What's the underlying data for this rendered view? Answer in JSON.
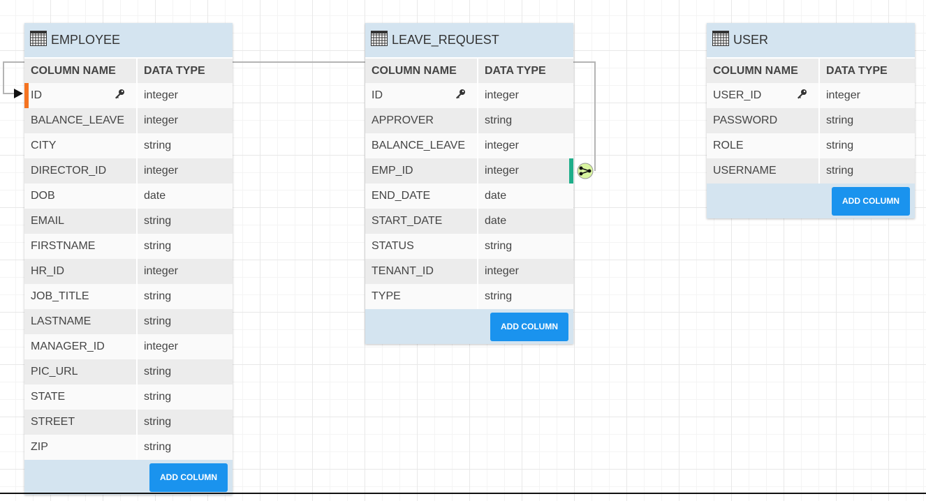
{
  "colors": {
    "header_bg": "#d4e4f0",
    "button": "#1a93ee",
    "pk_marker": "#f47321",
    "fk_marker": "#1fae8a",
    "relation_icon": "#d9f5a0"
  },
  "tables": [
    {
      "name": "EMPLOYEE",
      "col_header": "COLUMN NAME",
      "type_header": "DATA TYPE",
      "add_label": "ADD COLUMN",
      "columns": [
        {
          "name": "ID",
          "type": "integer",
          "key": true,
          "marker": "pk"
        },
        {
          "name": "BALANCE_LEAVE",
          "type": "integer"
        },
        {
          "name": "CITY",
          "type": "string"
        },
        {
          "name": "DIRECTOR_ID",
          "type": "integer"
        },
        {
          "name": "DOB",
          "type": "date"
        },
        {
          "name": "EMAIL",
          "type": "string"
        },
        {
          "name": "FIRSTNAME",
          "type": "string"
        },
        {
          "name": "HR_ID",
          "type": "integer"
        },
        {
          "name": "JOB_TITLE",
          "type": "string"
        },
        {
          "name": "LASTNAME",
          "type": "string"
        },
        {
          "name": "MANAGER_ID",
          "type": "integer"
        },
        {
          "name": "PIC_URL",
          "type": "string"
        },
        {
          "name": "STATE",
          "type": "string"
        },
        {
          "name": "STREET",
          "type": "string"
        },
        {
          "name": "ZIP",
          "type": "string"
        }
      ]
    },
    {
      "name": "LEAVE_REQUEST",
      "col_header": "COLUMN NAME",
      "type_header": "DATA TYPE",
      "add_label": "ADD COLUMN",
      "columns": [
        {
          "name": "ID",
          "type": "integer",
          "key": true
        },
        {
          "name": "APPROVER",
          "type": "string"
        },
        {
          "name": "BALANCE_LEAVE",
          "type": "integer"
        },
        {
          "name": "EMP_ID",
          "type": "integer",
          "marker": "fk"
        },
        {
          "name": "END_DATE",
          "type": "date"
        },
        {
          "name": "START_DATE",
          "type": "date"
        },
        {
          "name": "STATUS",
          "type": "string"
        },
        {
          "name": "TENANT_ID",
          "type": "integer"
        },
        {
          "name": "TYPE",
          "type": "string"
        }
      ]
    },
    {
      "name": "USER",
      "col_header": "COLUMN NAME",
      "type_header": "DATA TYPE",
      "add_label": "ADD COLUMN",
      "columns": [
        {
          "name": "USER_ID",
          "type": "integer",
          "key": true
        },
        {
          "name": "PASSWORD",
          "type": "string"
        },
        {
          "name": "ROLE",
          "type": "string"
        },
        {
          "name": "USERNAME",
          "type": "string"
        }
      ]
    }
  ]
}
